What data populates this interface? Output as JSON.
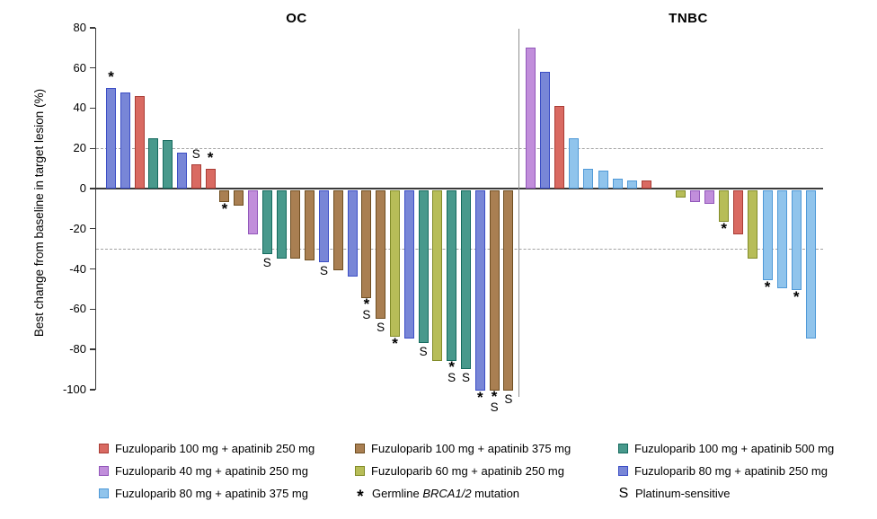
{
  "chart_data": {
    "type": "bar",
    "subtype": "waterfall",
    "ylabel": "Best change from baseline in target lesion (%)",
    "ylim": [
      -100,
      80
    ],
    "yticks": [
      80,
      60,
      40,
      20,
      0,
      -20,
      -40,
      -60,
      -80,
      -100
    ],
    "reference_lines": [
      20,
      -30
    ],
    "grid": "off",
    "legend_position": "bottom",
    "colors": {
      "fz100_ap250": {
        "label": "Fuzuloparib 100 mg + apatinib 250 mg",
        "fill": "#d96a62",
        "stroke": "#a93c35"
      },
      "fz40_ap250": {
        "label": "Fuzuloparib 40 mg + apatinib 250 mg",
        "fill": "#c18edb",
        "stroke": "#9257ba"
      },
      "fz80_ap375": {
        "label": "Fuzuloparib 80 mg + apatinib 375 mg",
        "fill": "#90c4ec",
        "stroke": "#4f99d7"
      },
      "fz100_ap375": {
        "label": "Fuzuloparib 100 mg + apatinib 375 mg",
        "fill": "#a97f52",
        "stroke": "#6f4e21"
      },
      "fz60_ap250": {
        "label": "Fuzuloparib 60 mg + apatinib 250 mg",
        "fill": "#b7bd58",
        "stroke": "#828c29"
      },
      "fz100_ap500": {
        "label": "Fuzuloparib 100 mg + apatinib 500 mg",
        "fill": "#48998c",
        "stroke": "#156a5e"
      },
      "fz80_ap250": {
        "label": "Fuzuloparib 80 mg + apatinib 250 mg",
        "fill": "#7886d7",
        "stroke": "#3c4ec5"
      }
    },
    "markers": {
      "star": {
        "symbol": "*",
        "label_prefix": "Germline ",
        "label_italic": "BRCA1/2",
        "label_suffix": " mutation"
      },
      "s": {
        "symbol": "S",
        "label": "Platinum-sensitive"
      }
    },
    "legend_columns": [
      [
        "fz100_ap250",
        "fz40_ap250",
        "fz80_ap375"
      ],
      [
        "fz100_ap375",
        "fz60_ap250",
        "star"
      ],
      [
        "fz100_ap500",
        "fz80_ap250",
        "s"
      ]
    ],
    "groups": [
      {
        "title": "OC",
        "bars": [
          {
            "value": 50,
            "arm": "fz80_ap250",
            "marker": "*"
          },
          {
            "value": 48,
            "arm": "fz80_ap250"
          },
          {
            "value": 46,
            "arm": "fz100_ap250"
          },
          {
            "value": 25,
            "arm": "fz100_ap500"
          },
          {
            "value": 24,
            "arm": "fz100_ap500"
          },
          {
            "value": 18,
            "arm": "fz80_ap250"
          },
          {
            "value": 12,
            "arm": "fz100_ap250",
            "marker": "S"
          },
          {
            "value": 10,
            "arm": "fz100_ap250",
            "marker": "*"
          },
          {
            "value": -6,
            "arm": "fz100_ap375",
            "marker": "*"
          },
          {
            "value": -8,
            "arm": "fz100_ap375"
          },
          {
            "value": -22,
            "arm": "fz40_ap250"
          },
          {
            "value": -32,
            "arm": "fz100_ap500",
            "marker": "S"
          },
          {
            "value": -34,
            "arm": "fz100_ap500"
          },
          {
            "value": -34,
            "arm": "fz100_ap375"
          },
          {
            "value": -35,
            "arm": "fz100_ap375"
          },
          {
            "value": -36,
            "arm": "fz80_ap250",
            "marker": "S"
          },
          {
            "value": -40,
            "arm": "fz100_ap375"
          },
          {
            "value": -43,
            "arm": "fz80_ap250"
          },
          {
            "value": -54,
            "arm": "fz100_ap375",
            "marker": "*S"
          },
          {
            "value": -64,
            "arm": "fz100_ap375",
            "marker": "S"
          },
          {
            "value": -73,
            "arm": "fz60_ap250",
            "marker": "*"
          },
          {
            "value": -74,
            "arm": "fz80_ap250"
          },
          {
            "value": -76,
            "arm": "fz100_ap500",
            "marker": "S"
          },
          {
            "value": -85,
            "arm": "fz60_ap250"
          },
          {
            "value": -85,
            "arm": "fz100_ap500",
            "marker": "*S"
          },
          {
            "value": -89,
            "arm": "fz100_ap500",
            "marker": "S"
          },
          {
            "value": -100,
            "arm": "fz80_ap250",
            "marker": "*"
          },
          {
            "value": -100,
            "arm": "fz100_ap375",
            "marker": "*S"
          },
          {
            "value": -100,
            "arm": "fz100_ap375",
            "marker": "S"
          }
        ]
      },
      {
        "title": "TNBC",
        "bars": [
          {
            "value": 70,
            "arm": "fz40_ap250"
          },
          {
            "value": 58,
            "arm": "fz80_ap250"
          },
          {
            "value": 41,
            "arm": "fz100_ap250"
          },
          {
            "value": 25,
            "arm": "fz80_ap375"
          },
          {
            "value": 10,
            "arm": "fz80_ap375"
          },
          {
            "value": 9,
            "arm": "fz80_ap375"
          },
          {
            "value": 5,
            "arm": "fz80_ap375"
          },
          {
            "value": 4,
            "arm": "fz80_ap375"
          },
          {
            "value": 4,
            "arm": "fz100_ap250"
          },
          {
            "value": -4,
            "arm": "fz60_ap250"
          },
          {
            "value": -6,
            "arm": "fz40_ap250"
          },
          {
            "value": -7,
            "arm": "fz40_ap250"
          },
          {
            "value": -16,
            "arm": "fz60_ap250",
            "marker": "*"
          },
          {
            "value": -22,
            "arm": "fz100_ap250"
          },
          {
            "value": -34,
            "arm": "fz60_ap250"
          },
          {
            "value": -45,
            "arm": "fz80_ap375",
            "marker": "*"
          },
          {
            "value": -49,
            "arm": "fz80_ap375"
          },
          {
            "value": -50,
            "arm": "fz80_ap375",
            "marker": "*"
          },
          {
            "value": -74,
            "arm": "fz80_ap375"
          }
        ]
      }
    ]
  }
}
